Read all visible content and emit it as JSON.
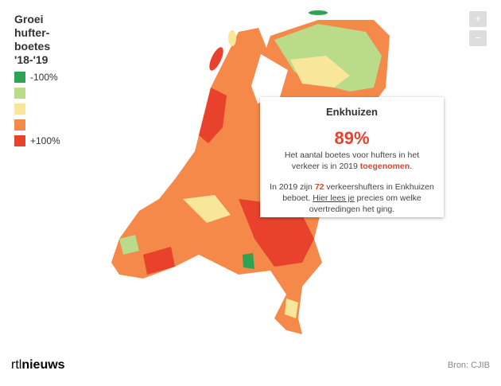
{
  "legend": {
    "title_lines": [
      "Groei",
      "hufter-",
      "boetes",
      "'18-'19"
    ],
    "colors": [
      "#2ea352",
      "#b9db8a",
      "#f8e79a",
      "#f4894a",
      "#e8412c"
    ],
    "low_label": "-100%",
    "high_label": "+100%"
  },
  "zoom": {
    "in": "+",
    "out": "−"
  },
  "tooltip": {
    "title": "Enkhuizen",
    "value": "89%",
    "text1": "Het aantal boetes voor hufters in het verkeer is in 2019",
    "text1_em": "toegenomen",
    "text1_end": ".",
    "text2_start": "In 2019 zijn",
    "text2_count": "72",
    "text2_mid": "verkeershufters in Enkhuizen beboet.",
    "text2_link": "Hier lees je",
    "text2_end": "precies om welke overtredingen het ging."
  },
  "logo": {
    "part1": "rtl",
    "part2": "nieuws"
  },
  "source": "Bron: CJIB"
}
